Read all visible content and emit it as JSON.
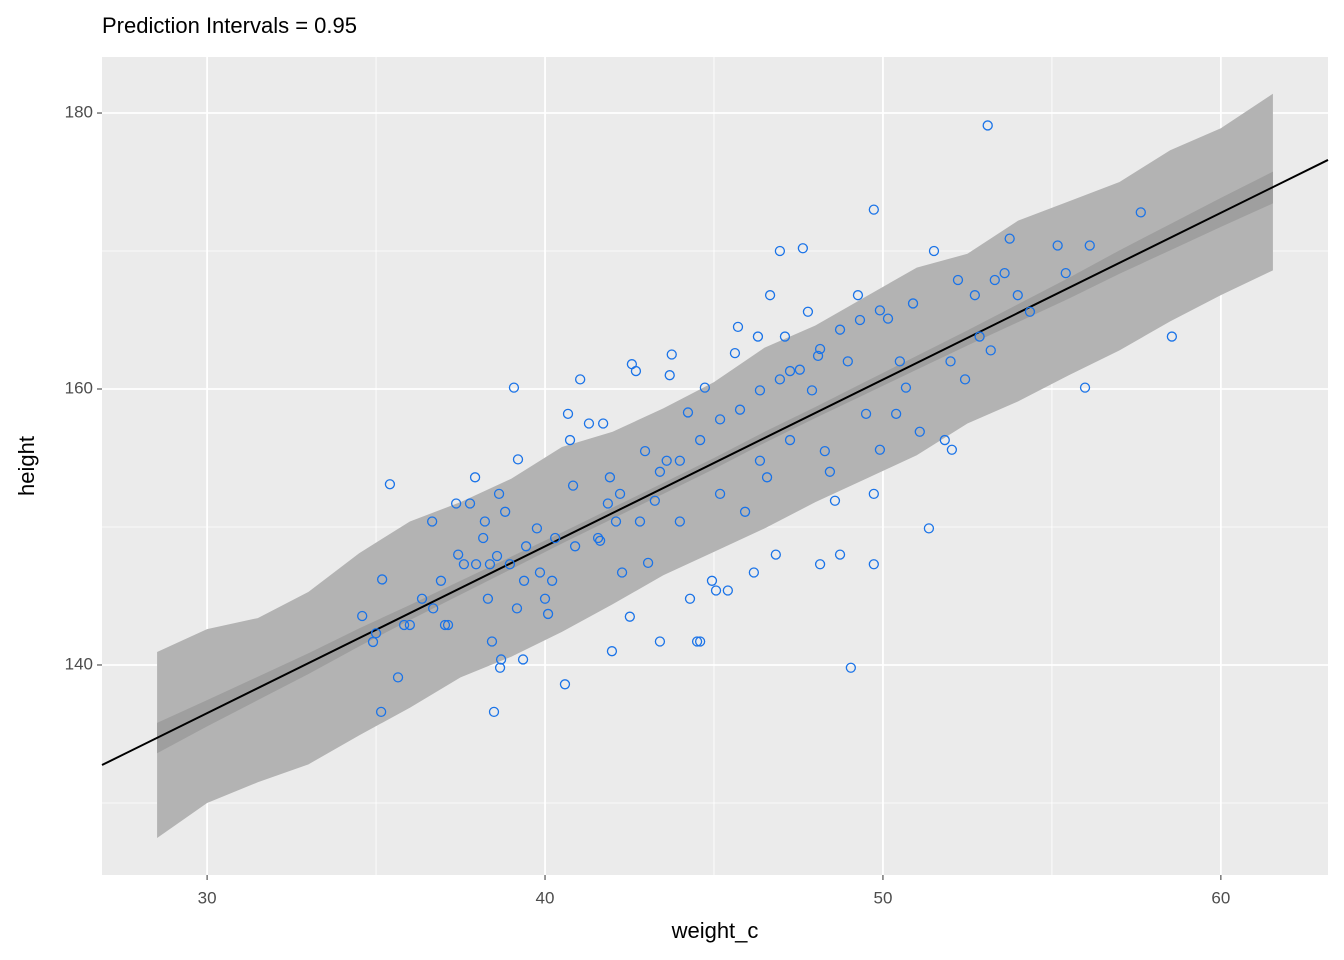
{
  "chart_data": {
    "type": "scatter",
    "title": "Prediction Intervals = 0.95",
    "x_label": "weight_c",
    "y_label": "height",
    "xlim": [
      26.89,
      63.17
    ],
    "ylim": [
      124.78,
      184.06
    ],
    "xticks": [
      30,
      40,
      50,
      60
    ],
    "yticks": [
      140,
      160,
      180
    ],
    "x_minor_ticks": [
      35,
      45,
      55
    ],
    "y_minor_ticks": [
      130,
      150,
      170
    ],
    "grid": true,
    "point_color": "#1a73e8",
    "x": [
      34.59,
      34.91,
      35.0,
      35.18,
      35.15,
      35.41,
      35.65,
      35.83,
      36.0,
      36.36,
      36.66,
      36.69,
      36.92,
      37.04,
      37.13,
      37.37,
      37.43,
      37.6,
      37.78,
      37.93,
      37.96,
      38.17,
      38.22,
      38.31,
      38.37,
      38.43,
      38.58,
      38.67,
      38.7,
      38.49,
      38.64,
      38.82,
      38.96,
      39.17,
      39.08,
      39.2,
      39.35,
      39.38,
      39.44,
      39.76,
      39.85,
      40.0,
      40.09,
      40.21,
      40.3,
      40.59,
      40.68,
      40.74,
      40.83,
      40.89,
      41.04,
      41.3,
      41.57,
      41.72,
      41.86,
      41.92,
      41.98,
      42.1,
      42.28,
      42.51,
      42.57,
      42.69,
      42.96,
      43.05,
      43.25,
      43.4,
      43.6,
      43.69,
      43.75,
      43.99,
      44.23,
      44.29,
      44.5,
      44.59,
      44.73,
      44.94,
      45.06,
      45.18,
      45.41,
      45.62,
      45.71,
      45.92,
      46.18,
      46.3,
      46.57,
      46.66,
      46.83,
      46.95,
      47.1,
      47.25,
      47.63,
      47.78,
      47.9,
      48.08,
      48.14,
      48.28,
      48.58,
      48.73,
      48.96,
      49.05,
      49.26,
      49.5,
      49.73,
      49.73,
      49.73,
      49.91,
      50.15,
      50.39,
      50.68,
      50.89,
      51.09,
      51.36,
      51.51,
      51.83,
      52.04,
      52.22,
      52.43,
      52.72,
      52.86,
      53.1,
      53.31,
      53.6,
      53.75,
      53.99,
      54.35,
      55.17,
      55.41,
      55.98,
      56.12,
      57.63,
      58.55,
      41.63,
      42.22,
      42.81,
      43.4,
      43.99,
      44.59,
      45.18,
      45.77,
      46.36,
      46.95,
      47.54,
      48.14,
      48.73,
      49.32,
      49.91,
      46.36,
      47.25,
      48.43,
      50.5,
      52.0,
      53.19
    ],
    "y": [
      143.55,
      141.67,
      142.3,
      146.2,
      136.6,
      153.1,
      139.1,
      142.9,
      142.9,
      144.8,
      150.4,
      144.1,
      146.1,
      142.9,
      142.9,
      151.7,
      148.0,
      147.3,
      151.7,
      153.6,
      147.3,
      149.2,
      150.4,
      144.8,
      147.3,
      141.7,
      147.9,
      139.8,
      140.4,
      136.6,
      152.4,
      151.1,
      147.3,
      144.1,
      160.1,
      154.9,
      140.4,
      146.1,
      148.6,
      149.9,
      146.7,
      144.8,
      143.7,
      146.1,
      149.2,
      138.6,
      158.2,
      156.3,
      153.0,
      148.6,
      160.7,
      157.5,
      149.2,
      157.5,
      151.7,
      153.6,
      141.0,
      150.4,
      146.7,
      143.5,
      161.8,
      161.3,
      155.5,
      147.4,
      151.9,
      141.7,
      154.8,
      161.0,
      162.5,
      150.4,
      158.3,
      144.8,
      141.7,
      141.7,
      160.1,
      146.1,
      145.4,
      152.4,
      145.4,
      162.6,
      164.5,
      151.1,
      146.7,
      163.8,
      153.6,
      166.8,
      148.0,
      170.0,
      163.8,
      161.3,
      170.2,
      165.6,
      159.9,
      162.4,
      147.3,
      155.5,
      151.9,
      148.0,
      162.0,
      139.8,
      166.8,
      158.2,
      173.0,
      152.4,
      147.3,
      155.6,
      165.1,
      158.2,
      160.1,
      166.2,
      156.9,
      149.9,
      170.0,
      156.3,
      155.6,
      167.9,
      160.7,
      166.8,
      163.8,
      179.1,
      167.9,
      168.4,
      170.9,
      166.8,
      165.6,
      170.4,
      168.4,
      160.1,
      170.4,
      172.8,
      163.8,
      149.0,
      152.4,
      150.4,
      154.0,
      154.8,
      156.3,
      157.8,
      158.5,
      159.9,
      160.7,
      161.4,
      162.9,
      164.3,
      165.0,
      165.7,
      154.8,
      156.3,
      154.0,
      162.0,
      162.0,
      162.8
    ],
    "band": {
      "pi_color": "#b3b3b3",
      "ci_color": "#9f9f9f",
      "x": [
        28.52,
        30,
        31.5,
        33,
        34.5,
        36,
        37.5,
        39,
        40.5,
        42,
        43.5,
        45,
        46.5,
        48,
        49.5,
        51,
        52.5,
        54,
        55.5,
        57,
        58.5,
        60,
        61.54
      ],
      "pi_upper": [
        140.94,
        142.6,
        143.4,
        145.3,
        148.1,
        150.4,
        151.8,
        153.5,
        155.8,
        156.9,
        158.6,
        160.5,
        163.0,
        164.6,
        166.7,
        168.8,
        169.8,
        172.2,
        173.6,
        175.0,
        177.3,
        178.9,
        181.4
      ],
      "pi_lower": [
        127.46,
        130.0,
        131.5,
        132.8,
        134.9,
        136.9,
        139.1,
        140.6,
        142.4,
        144.4,
        146.5,
        148.2,
        149.9,
        151.8,
        153.5,
        155.2,
        157.5,
        159.1,
        161.0,
        162.8,
        164.9,
        166.8,
        168.6
      ],
      "ci_upper": [
        135.8,
        137.45,
        139.15,
        140.85,
        142.65,
        144.35,
        146.1,
        147.85,
        149.6,
        151.4,
        153.2,
        155.0,
        156.9,
        158.7,
        160.55,
        162.4,
        164.25,
        166.15,
        168.05,
        170.05,
        171.95,
        173.85,
        175.75
      ],
      "ci_lower": [
        133.6,
        135.55,
        137.45,
        139.35,
        141.35,
        143.25,
        145.1,
        146.95,
        148.8,
        150.6,
        152.4,
        154.2,
        156.1,
        157.9,
        159.65,
        161.4,
        163.15,
        164.85,
        166.55,
        168.35,
        170.05,
        171.75,
        173.45
      ]
    },
    "fit": {
      "color": "#000000",
      "x": [
        26.89,
        63.17
      ],
      "y": [
        132.75,
        176.6
      ]
    }
  }
}
